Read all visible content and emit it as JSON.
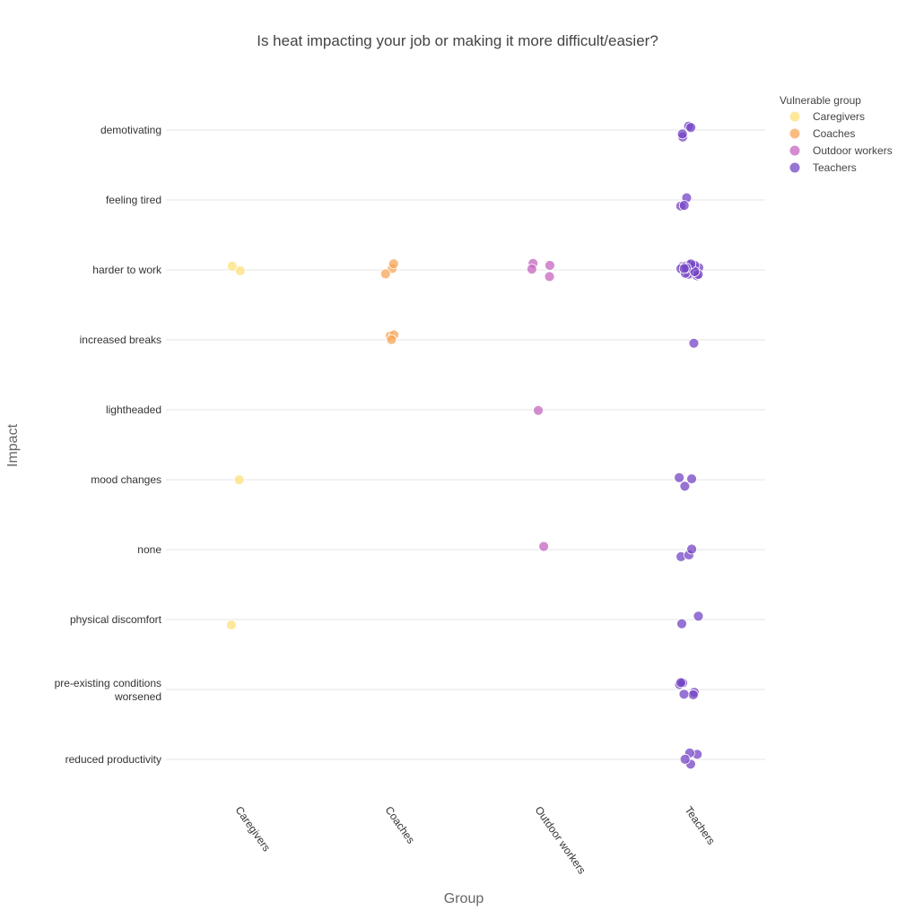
{
  "chart_data": {
    "type": "scatter",
    "title": "Is heat impacting your job or making it more difficult/easier?",
    "xlabel": "Group",
    "ylabel": "Impact",
    "grid": "horizontal",
    "legend_position": "top-right",
    "legend_title": "Vulnerable group",
    "categories_x": [
      "Caregivers",
      "Coaches",
      "Outdoor workers",
      "Teachers"
    ],
    "categories_y": [
      "demotivating",
      "feeling tired",
      "harder to work",
      "increased breaks",
      "lightheaded",
      "mood changes",
      "none",
      "physical discomfort",
      "pre-existing conditions worsened",
      "reduced productivity"
    ],
    "series": [
      {
        "name": "Caregivers",
        "color": "#fde07a",
        "points": [
          {
            "impact": "harder to work",
            "count": 2
          },
          {
            "impact": "mood changes",
            "count": 1
          },
          {
            "impact": "physical discomfort",
            "count": 1
          }
        ]
      },
      {
        "name": "Coaches",
        "color": "#f5a55a",
        "points": [
          {
            "impact": "harder to work",
            "count": 3
          },
          {
            "impact": "increased breaks",
            "count": 3
          }
        ]
      },
      {
        "name": "Outdoor workers",
        "color": "#c565c0",
        "points": [
          {
            "impact": "harder to work",
            "count": 4
          },
          {
            "impact": "lightheaded",
            "count": 1
          },
          {
            "impact": "none",
            "count": 1
          }
        ]
      },
      {
        "name": "Teachers",
        "color": "#7444c4",
        "points": [
          {
            "impact": "demotivating",
            "count": 4
          },
          {
            "impact": "feeling tired",
            "count": 3
          },
          {
            "impact": "harder to work",
            "count": 20
          },
          {
            "impact": "increased breaks",
            "count": 1
          },
          {
            "impact": "mood changes",
            "count": 3
          },
          {
            "impact": "none",
            "count": 3
          },
          {
            "impact": "physical discomfort",
            "count": 2
          },
          {
            "impact": "pre-existing conditions worsened",
            "count": 6
          },
          {
            "impact": "reduced productivity",
            "count": 4
          }
        ]
      }
    ]
  }
}
